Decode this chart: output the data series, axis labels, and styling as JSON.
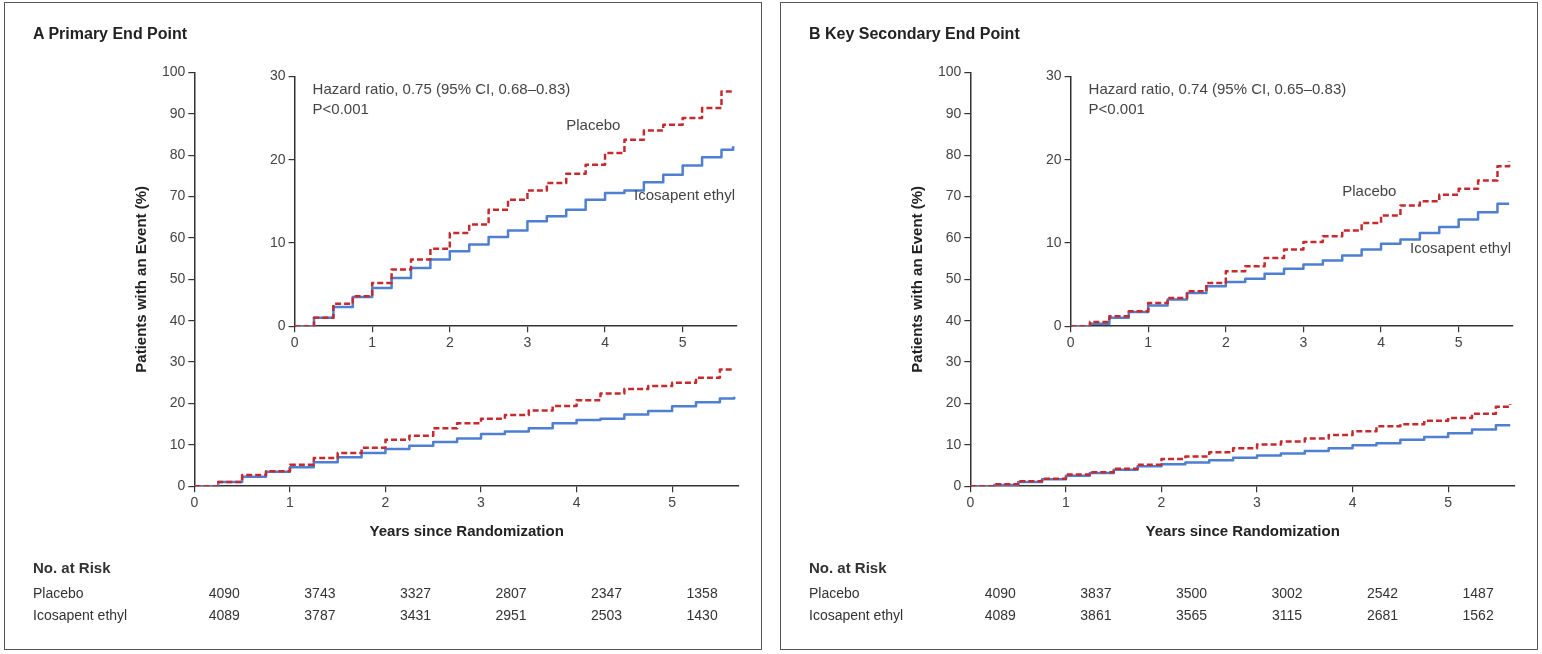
{
  "chart_data": [
    {
      "type": "step",
      "title": "A Primary End Point",
      "xlabel": "Years since Randomization",
      "ylabel": "Patients with an Event (%)",
      "x": [
        0,
        0.25,
        0.5,
        0.75,
        1,
        1.25,
        1.5,
        1.75,
        2,
        2.25,
        2.5,
        2.75,
        3,
        3.25,
        3.5,
        3.75,
        4,
        4.25,
        4.5,
        4.75,
        5,
        5.25,
        5.5,
        5.65
      ],
      "xlim": [
        0,
        5.7
      ],
      "xticks": [
        0,
        1,
        2,
        3,
        4,
        5
      ],
      "ylim": [
        0,
        100
      ],
      "yticks": [
        0,
        10,
        20,
        30,
        40,
        50,
        60,
        70,
        80,
        90,
        100
      ],
      "grid": false,
      "legend": false,
      "marker": "none",
      "series": [
        {
          "color": "#c42a2e",
          "line_style": "dashed",
          "values": [
            0,
            1,
            2.7,
            3.6,
            5.2,
            6.8,
            8,
            9.3,
            11.2,
            12.2,
            14,
            15.2,
            16.3,
            17.2,
            18.3,
            19.4,
            20.8,
            22.4,
            23.5,
            24.2,
            25,
            26.2,
            28.2,
            28.3
          ]
        },
        {
          "color": "#4f7fd0",
          "line_style": "solid",
          "values": [
            0,
            1,
            2.3,
            3.5,
            4.6,
            5.8,
            7,
            8,
            9,
            9.8,
            10.7,
            11.5,
            12.6,
            13.2,
            14,
            15.2,
            16,
            16.3,
            17.3,
            18.2,
            19.3,
            20.3,
            21.2,
            21.6
          ]
        }
      ],
      "annotations": [
        "No. at Risk",
        "Placebo",
        "4090",
        "3743",
        "3327",
        "2807",
        "2347",
        "1358",
        "Icosapent ethyl",
        "4089",
        "3787",
        "3431",
        "2951",
        "2503",
        "1430"
      ]
    },
    {
      "type": "step",
      "x": [
        0,
        0.25,
        0.5,
        0.75,
        1,
        1.25,
        1.5,
        1.75,
        2,
        2.25,
        2.5,
        2.75,
        3,
        3.25,
        3.5,
        3.75,
        4,
        4.25,
        4.5,
        4.75,
        5,
        5.25,
        5.5,
        5.65
      ],
      "xlim": [
        0,
        5.7
      ],
      "xticks": [
        0,
        1,
        2,
        3,
        4,
        5
      ],
      "ylim": [
        0,
        30
      ],
      "yticks": [
        0,
        10,
        20,
        30
      ],
      "grid": false,
      "legend": false,
      "marker": "none",
      "series": [
        {
          "name": "Placebo",
          "color": "#c42a2e",
          "line_style": "dashed",
          "values": [
            0,
            1,
            2.7,
            3.6,
            5.2,
            6.8,
            8,
            9.3,
            11.2,
            12.2,
            14,
            15.2,
            16.3,
            17.2,
            18.3,
            19.4,
            20.8,
            22.4,
            23.5,
            24.2,
            25,
            26.2,
            28.2,
            28.3
          ]
        },
        {
          "name": "Icosapent ethyl",
          "color": "#4f7fd0",
          "line_style": "solid",
          "values": [
            0,
            1,
            2.3,
            3.5,
            4.6,
            5.8,
            7,
            8,
            9,
            9.8,
            10.7,
            11.5,
            12.6,
            13.2,
            14,
            15.2,
            16,
            16.3,
            17.3,
            18.2,
            19.3,
            20.3,
            21.2,
            21.6
          ]
        }
      ],
      "annotations": [
        "Hazard ratio, 0.75 (95% CI, 0.68–0.83)",
        "P<0.001"
      ]
    },
    {
      "type": "step",
      "title": "B Key Secondary End Point",
      "xlabel": "Years since Randomization",
      "ylabel": "Patients with an Event (%)",
      "x": [
        0,
        0.25,
        0.5,
        0.75,
        1,
        1.25,
        1.5,
        1.75,
        2,
        2.25,
        2.5,
        2.75,
        3,
        3.25,
        3.5,
        3.75,
        4,
        4.25,
        4.5,
        4.75,
        5,
        5.25,
        5.5,
        5.65
      ],
      "xlim": [
        0,
        5.7
      ],
      "xticks": [
        0,
        1,
        2,
        3,
        4,
        5
      ],
      "ylim": [
        0,
        100
      ],
      "yticks": [
        0,
        10,
        20,
        30,
        40,
        50,
        60,
        70,
        80,
        90,
        100
      ],
      "grid": false,
      "legend": false,
      "marker": "none",
      "series": [
        {
          "color": "#c42a2e",
          "line_style": "dashed",
          "values": [
            0,
            0.5,
            1.2,
            1.8,
            2.8,
            3.4,
            4.2,
            5.2,
            6.6,
            7.2,
            8.2,
            9.2,
            10.1,
            10.8,
            11.5,
            12.4,
            13.3,
            14.5,
            15,
            15.8,
            16.5,
            17.5,
            19.2,
            19.8
          ]
        },
        {
          "color": "#4f7fd0",
          "line_style": "solid",
          "values": [
            0,
            0.3,
            1,
            1.7,
            2.5,
            3.2,
            4,
            4.8,
            5.3,
            5.7,
            6.3,
            6.9,
            7.4,
            7.9,
            8.5,
            9.2,
            9.9,
            10.4,
            11.2,
            11.9,
            12.8,
            13.7,
            14.7,
            14.7
          ]
        }
      ],
      "annotations": [
        "No. at Risk",
        "Placebo",
        "4090",
        "3837",
        "3500",
        "3002",
        "2542",
        "1487",
        "Icosapent ethyl",
        "4089",
        "3861",
        "3565",
        "3115",
        "2681",
        "1562"
      ]
    },
    {
      "type": "step",
      "x": [
        0,
        0.25,
        0.5,
        0.75,
        1,
        1.25,
        1.5,
        1.75,
        2,
        2.25,
        2.5,
        2.75,
        3,
        3.25,
        3.5,
        3.75,
        4,
        4.25,
        4.5,
        4.75,
        5,
        5.25,
        5.5,
        5.65
      ],
      "xlim": [
        0,
        5.7
      ],
      "xticks": [
        0,
        1,
        2,
        3,
        4,
        5
      ],
      "ylim": [
        0,
        30
      ],
      "yticks": [
        0,
        10,
        20,
        30
      ],
      "grid": false,
      "legend": false,
      "marker": "none",
      "series": [
        {
          "name": "Placebo",
          "color": "#c42a2e",
          "line_style": "dashed",
          "values": [
            0,
            0.5,
            1.2,
            1.8,
            2.8,
            3.4,
            4.2,
            5.2,
            6.6,
            7.2,
            8.2,
            9.2,
            10.1,
            10.8,
            11.5,
            12.4,
            13.3,
            14.5,
            15,
            15.8,
            16.5,
            17.5,
            19.2,
            19.8
          ]
        },
        {
          "name": "Icosapent ethyl",
          "color": "#4f7fd0",
          "line_style": "solid",
          "values": [
            0,
            0.3,
            1,
            1.7,
            2.5,
            3.2,
            4,
            4.8,
            5.3,
            5.7,
            6.3,
            6.9,
            7.4,
            7.9,
            8.5,
            9.2,
            9.9,
            10.4,
            11.2,
            11.9,
            12.8,
            13.7,
            14.7,
            14.7
          ]
        }
      ],
      "annotations": [
        "Hazard ratio, 0.74 (95% CI, 0.65–0.83)",
        "P<0.001"
      ]
    }
  ]
}
